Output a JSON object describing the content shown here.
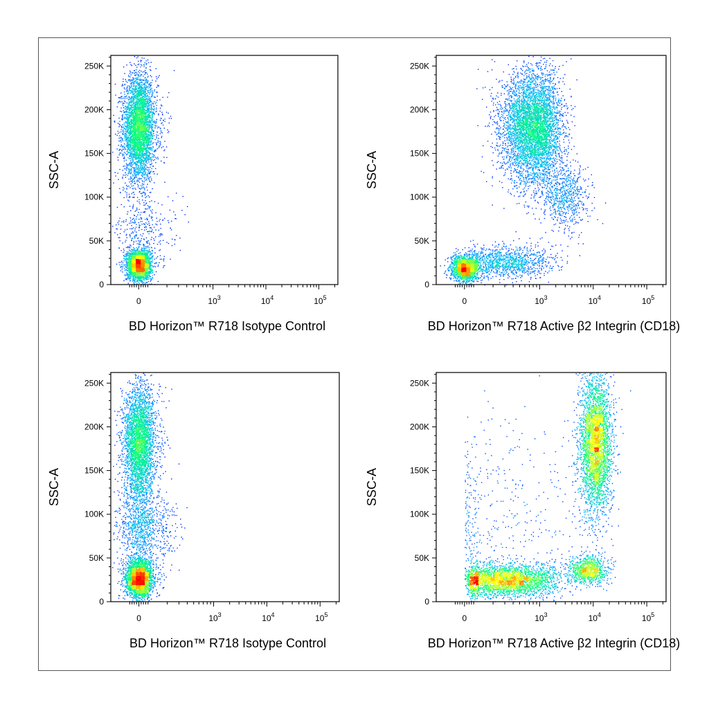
{
  "chart_data": [
    {
      "type": "scatter",
      "subtype": "flow-cytometry-density-dot-plot",
      "xlabel": "BD Horizon™ R718  Isotype Control",
      "ylabel": "SSC-A",
      "x_scale": "biexponential",
      "x_ticks": [
        {
          "value": 0,
          "label": "0"
        },
        {
          "value": 1000,
          "label": "10",
          "sup": "3"
        },
        {
          "value": 10000,
          "label": "10",
          "sup": "4"
        },
        {
          "value": 100000,
          "label": "10",
          "sup": "5"
        }
      ],
      "y_ticks": [
        {
          "value": 0,
          "label": "0"
        },
        {
          "value": 50000,
          "label": "50K"
        },
        {
          "value": 100000,
          "label": "100K"
        },
        {
          "value": 150000,
          "label": "150K"
        },
        {
          "value": 200000,
          "label": "200K"
        },
        {
          "value": 250000,
          "label": "250K"
        }
      ],
      "ylim": [
        0,
        262144
      ],
      "grid": false,
      "populations": [
        {
          "x": 0,
          "y": 180000,
          "sx": 70,
          "sy": 30000,
          "n": 4200
        },
        {
          "x": 0,
          "y": 23000,
          "sx": 55,
          "sy": 9000,
          "n": 2600
        },
        {
          "x": 30,
          "y": 70000,
          "sx": 120,
          "sy": 18000,
          "n": 300
        }
      ],
      "colormap": [
        "#0000ff",
        "#00b4ff",
        "#00ff80",
        "#ffff00",
        "#ff0000"
      ]
    },
    {
      "type": "scatter",
      "subtype": "flow-cytometry-density-dot-plot",
      "xlabel": "BD Horizon™ R718 Active β2 Integrin (CD18)",
      "ylabel": "SSC-A",
      "x_scale": "biexponential",
      "x_ticks": [
        {
          "value": 0,
          "label": "0"
        },
        {
          "value": 1000,
          "label": "10",
          "sup": "3"
        },
        {
          "value": 10000,
          "label": "10",
          "sup": "4"
        },
        {
          "value": 100000,
          "label": "10",
          "sup": "5"
        }
      ],
      "y_ticks": [
        {
          "value": 0,
          "label": "0"
        },
        {
          "value": 50000,
          "label": "50K"
        },
        {
          "value": 100000,
          "label": "100K"
        },
        {
          "value": 150000,
          "label": "150K"
        },
        {
          "value": 200000,
          "label": "200K"
        },
        {
          "value": 250000,
          "label": "250K"
        }
      ],
      "ylim": [
        0,
        262144
      ],
      "grid": false,
      "populations": [
        {
          "x": 800,
          "y": 180000,
          "sx": 600,
          "sy": 32000,
          "n": 5200
        },
        {
          "x": 3000,
          "y": 100000,
          "sx": 2000,
          "sy": 20000,
          "n": 700
        },
        {
          "x": 0,
          "y": 19000,
          "sx": 60,
          "sy": 7000,
          "n": 1900
        },
        {
          "x": 300,
          "y": 26000,
          "sx": 400,
          "sy": 9000,
          "n": 1200
        }
      ],
      "colormap": [
        "#0000ff",
        "#00b4ff",
        "#00ff80",
        "#ffff00",
        "#ff0000"
      ]
    },
    {
      "type": "scatter",
      "subtype": "flow-cytometry-density-dot-plot",
      "xlabel": "BD Horizon™ R718  Isotype Control",
      "ylabel": "SSC-A",
      "x_scale": "biexponential",
      "x_ticks": [
        {
          "value": 0,
          "label": "0"
        },
        {
          "value": 1000,
          "label": "10",
          "sup": "3"
        },
        {
          "value": 10000,
          "label": "10",
          "sup": "4"
        },
        {
          "value": 100000,
          "label": "10",
          "sup": "5"
        }
      ],
      "y_ticks": [
        {
          "value": 0,
          "label": "0"
        },
        {
          "value": 50000,
          "label": "50K"
        },
        {
          "value": 100000,
          "label": "100K"
        },
        {
          "value": 150000,
          "label": "150K"
        },
        {
          "value": 200000,
          "label": "200K"
        },
        {
          "value": 250000,
          "label": "250K"
        }
      ],
      "ylim": [
        0,
        262144
      ],
      "grid": false,
      "populations": [
        {
          "x": 0,
          "y": 180000,
          "sx": 70,
          "sy": 35000,
          "n": 3600
        },
        {
          "x": 0,
          "y": 27000,
          "sx": 60,
          "sy": 11000,
          "n": 3000
        },
        {
          "x": 30,
          "y": 85000,
          "sx": 110,
          "sy": 20000,
          "n": 900
        }
      ],
      "colormap": [
        "#0000ff",
        "#00b4ff",
        "#00ff80",
        "#ffff00",
        "#ff0000"
      ]
    },
    {
      "type": "scatter",
      "subtype": "flow-cytometry-density-dot-plot",
      "xlabel": "BD Horizon™ R718 Active β2 Integrin (CD18)",
      "ylabel": "SSC-A",
      "x_scale": "biexponential",
      "x_ticks": [
        {
          "value": 0,
          "label": "0"
        },
        {
          "value": 1000,
          "label": "10",
          "sup": "3"
        },
        {
          "value": 10000,
          "label": "10",
          "sup": "4"
        },
        {
          "value": 100000,
          "label": "10",
          "sup": "5"
        }
      ],
      "y_ticks": [
        {
          "value": 0,
          "label": "0"
        },
        {
          "value": 50000,
          "label": "50K"
        },
        {
          "value": 100000,
          "label": "100K"
        },
        {
          "value": 150000,
          "label": "150K"
        },
        {
          "value": 200000,
          "label": "200K"
        },
        {
          "value": 250000,
          "label": "250K"
        }
      ],
      "ylim": [
        0,
        262144
      ],
      "grid": false,
      "populations": [
        {
          "x": 11000,
          "y": 180000,
          "sx": 4500,
          "sy": 40000,
          "n": 3600
        },
        {
          "x": 300,
          "y": 25000,
          "sx": 500,
          "sy": 9000,
          "n": 3000
        },
        {
          "x": 8000,
          "y": 37000,
          "sx": 4000,
          "sy": 8000,
          "n": 900
        },
        {
          "x": 200,
          "y": 90000,
          "sx": 900,
          "sy": 60000,
          "n": 500
        }
      ],
      "colormap": [
        "#0000ff",
        "#00b4ff",
        "#00ff80",
        "#ffff00",
        "#ff0000"
      ]
    }
  ]
}
